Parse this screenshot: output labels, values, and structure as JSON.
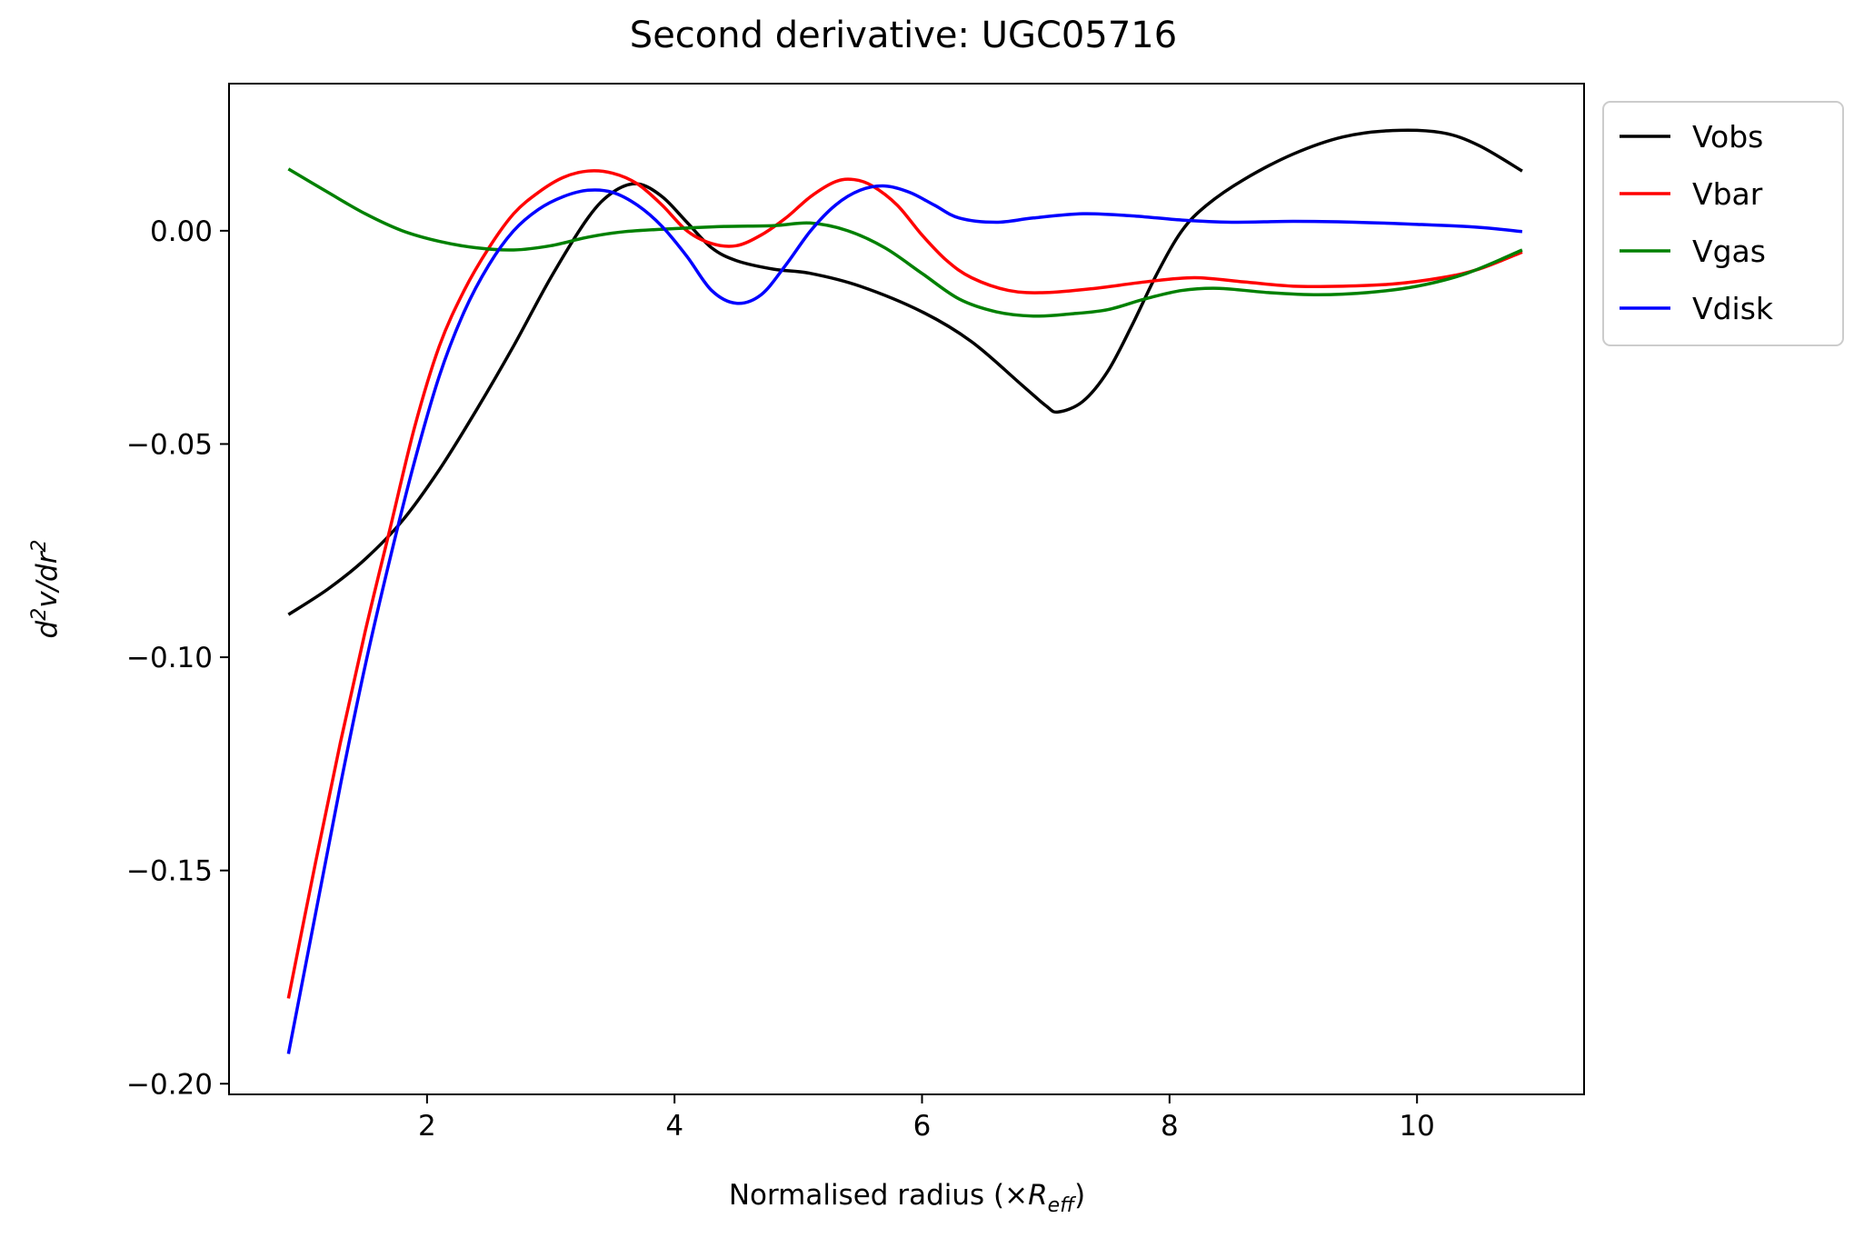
{
  "chart_data": {
    "type": "line",
    "title": "Second derivative: UGC05716",
    "xlabel_prefix": "Normalised radius (×",
    "xlabel_symbol": "R",
    "xlabel_subscript": "eff",
    "xlabel_suffix": ")",
    "ylabel_base": "d",
    "ylabel_sup1": "2",
    "ylabel_mid": "v/dr",
    "ylabel_sup2": "2",
    "xlim": [
      0.4,
      11.35
    ],
    "ylim": [
      -0.2025,
      0.0345
    ],
    "xticks": [
      2,
      4,
      6,
      8,
      10
    ],
    "xtick_labels": [
      "2",
      "4",
      "6",
      "8",
      "10"
    ],
    "yticks": [
      0.0,
      -0.05,
      -0.1,
      -0.15,
      -0.2
    ],
    "ytick_labels": [
      "0.00",
      "−0.05",
      "−0.10",
      "−0.15",
      "−0.20"
    ],
    "legend_position": "outside-top-right",
    "series": [
      {
        "name": "Vobs",
        "color": "#000000",
        "points": [
          [
            0.88,
            -0.09
          ],
          [
            1.2,
            -0.084
          ],
          [
            1.5,
            -0.077
          ],
          [
            1.8,
            -0.068
          ],
          [
            2.1,
            -0.056
          ],
          [
            2.4,
            -0.042
          ],
          [
            2.7,
            -0.027
          ],
          [
            3.0,
            -0.011
          ],
          [
            3.3,
            0.003
          ],
          [
            3.5,
            0.009
          ],
          [
            3.7,
            0.011
          ],
          [
            3.9,
            0.008
          ],
          [
            4.1,
            0.002
          ],
          [
            4.3,
            -0.004
          ],
          [
            4.5,
            -0.007
          ],
          [
            4.8,
            -0.009
          ],
          [
            5.1,
            -0.01
          ],
          [
            5.5,
            -0.013
          ],
          [
            6.0,
            -0.019
          ],
          [
            6.4,
            -0.026
          ],
          [
            6.8,
            -0.036
          ],
          [
            7.0,
            -0.041
          ],
          [
            7.1,
            -0.0425
          ],
          [
            7.3,
            -0.04
          ],
          [
            7.5,
            -0.033
          ],
          [
            7.7,
            -0.022
          ],
          [
            7.9,
            -0.01
          ],
          [
            8.1,
            0.0
          ],
          [
            8.3,
            0.006
          ],
          [
            8.6,
            0.012
          ],
          [
            9.0,
            0.018
          ],
          [
            9.4,
            0.022
          ],
          [
            9.8,
            0.0235
          ],
          [
            10.2,
            0.023
          ],
          [
            10.5,
            0.02
          ],
          [
            10.85,
            0.014
          ]
        ]
      },
      {
        "name": "Vbar",
        "color": "#ff0000",
        "points": [
          [
            0.88,
            -0.18
          ],
          [
            1.1,
            -0.148
          ],
          [
            1.3,
            -0.12
          ],
          [
            1.5,
            -0.094
          ],
          [
            1.7,
            -0.07
          ],
          [
            1.9,
            -0.046
          ],
          [
            2.1,
            -0.027
          ],
          [
            2.3,
            -0.014
          ],
          [
            2.5,
            -0.004
          ],
          [
            2.7,
            0.004
          ],
          [
            2.9,
            0.009
          ],
          [
            3.1,
            0.0125
          ],
          [
            3.3,
            0.014
          ],
          [
            3.5,
            0.0135
          ],
          [
            3.7,
            0.011
          ],
          [
            3.9,
            0.006
          ],
          [
            4.1,
            0.0
          ],
          [
            4.3,
            -0.003
          ],
          [
            4.5,
            -0.0035
          ],
          [
            4.7,
            -0.001
          ],
          [
            4.9,
            0.003
          ],
          [
            5.1,
            0.008
          ],
          [
            5.3,
            0.0115
          ],
          [
            5.45,
            0.012
          ],
          [
            5.6,
            0.0105
          ],
          [
            5.8,
            0.006
          ],
          [
            6.0,
            -0.001
          ],
          [
            6.2,
            -0.007
          ],
          [
            6.4,
            -0.011
          ],
          [
            6.7,
            -0.014
          ],
          [
            7.0,
            -0.0145
          ],
          [
            7.4,
            -0.0135
          ],
          [
            7.8,
            -0.012
          ],
          [
            8.2,
            -0.011
          ],
          [
            8.6,
            -0.012
          ],
          [
            9.0,
            -0.013
          ],
          [
            9.4,
            -0.013
          ],
          [
            9.8,
            -0.0125
          ],
          [
            10.2,
            -0.011
          ],
          [
            10.5,
            -0.009
          ],
          [
            10.85,
            -0.005
          ]
        ]
      },
      {
        "name": "Vgas",
        "color": "#008000",
        "points": [
          [
            0.88,
            0.0145
          ],
          [
            1.2,
            0.009
          ],
          [
            1.5,
            0.004
          ],
          [
            1.8,
            0.0
          ],
          [
            2.1,
            -0.0025
          ],
          [
            2.4,
            -0.004
          ],
          [
            2.7,
            -0.0045
          ],
          [
            3.0,
            -0.0035
          ],
          [
            3.3,
            -0.0015
          ],
          [
            3.6,
            -0.0002
          ],
          [
            4.0,
            0.0005
          ],
          [
            4.4,
            0.001
          ],
          [
            4.8,
            0.0012
          ],
          [
            5.1,
            0.0018
          ],
          [
            5.4,
            0.0
          ],
          [
            5.7,
            -0.004
          ],
          [
            6.0,
            -0.01
          ],
          [
            6.3,
            -0.016
          ],
          [
            6.6,
            -0.019
          ],
          [
            6.9,
            -0.02
          ],
          [
            7.2,
            -0.0195
          ],
          [
            7.5,
            -0.0185
          ],
          [
            7.8,
            -0.016
          ],
          [
            8.1,
            -0.014
          ],
          [
            8.4,
            -0.0135
          ],
          [
            8.8,
            -0.0145
          ],
          [
            9.2,
            -0.015
          ],
          [
            9.6,
            -0.0145
          ],
          [
            10.0,
            -0.013
          ],
          [
            10.4,
            -0.01
          ],
          [
            10.85,
            -0.0045
          ]
        ]
      },
      {
        "name": "Vdisk",
        "color": "#0000ff",
        "points": [
          [
            0.88,
            -0.193
          ],
          [
            1.1,
            -0.16
          ],
          [
            1.3,
            -0.13
          ],
          [
            1.5,
            -0.102
          ],
          [
            1.7,
            -0.077
          ],
          [
            1.9,
            -0.054
          ],
          [
            2.1,
            -0.034
          ],
          [
            2.3,
            -0.019
          ],
          [
            2.5,
            -0.008
          ],
          [
            2.7,
            0.0
          ],
          [
            2.9,
            0.005
          ],
          [
            3.1,
            0.008
          ],
          [
            3.3,
            0.0095
          ],
          [
            3.5,
            0.009
          ],
          [
            3.7,
            0.006
          ],
          [
            3.9,
            0.001
          ],
          [
            4.1,
            -0.006
          ],
          [
            4.3,
            -0.014
          ],
          [
            4.5,
            -0.017
          ],
          [
            4.7,
            -0.015
          ],
          [
            4.9,
            -0.008
          ],
          [
            5.1,
            0.0
          ],
          [
            5.3,
            0.006
          ],
          [
            5.5,
            0.0095
          ],
          [
            5.7,
            0.0105
          ],
          [
            5.9,
            0.009
          ],
          [
            6.1,
            0.006
          ],
          [
            6.3,
            0.003
          ],
          [
            6.6,
            0.002
          ],
          [
            6.9,
            0.003
          ],
          [
            7.3,
            0.004
          ],
          [
            7.7,
            0.0035
          ],
          [
            8.1,
            0.0025
          ],
          [
            8.5,
            0.002
          ],
          [
            9.0,
            0.0022
          ],
          [
            9.5,
            0.002
          ],
          [
            10.0,
            0.0015
          ],
          [
            10.5,
            0.0008
          ],
          [
            10.85,
            -0.0002
          ]
        ]
      }
    ]
  }
}
